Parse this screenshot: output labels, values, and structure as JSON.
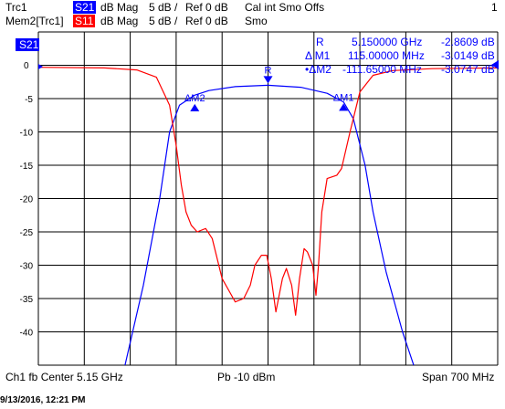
{
  "header": {
    "trace1": {
      "name": "Trc1",
      "param": "S21",
      "format": "dB Mag",
      "scale": "5 dB /",
      "ref": "Ref 0 dB",
      "cal": "Cal int Smo Offs",
      "channel_num": "1"
    },
    "trace2": {
      "name": "Mem2[Trc1]",
      "param": "S11",
      "format": "dB Mag",
      "scale": "5 dB /",
      "ref": "Ref 0 dB",
      "smo": "Smo"
    }
  },
  "plot": {
    "s21_label": "S21",
    "ref_value": "0",
    "y_labels": [
      "-5",
      "-10",
      "-15",
      "-20",
      "-25",
      "-30",
      "-35",
      "-40"
    ],
    "markers": {
      "r": "R",
      "m1": "ΔM1",
      "m2": "ΔM2"
    }
  },
  "marker_table": {
    "rows": [
      {
        "label": "R",
        "x": "5.150000 GHz",
        "y": "-2.8609 dB"
      },
      {
        "label": "Δ M1",
        "x": "115.00000 MHz",
        "y": "-3.0149 dB"
      },
      {
        "label": "•ΔM2",
        "x": "-111.65000 MHz",
        "y": "-3.0747 dB"
      }
    ]
  },
  "footer": {
    "left": "Ch1 fb  Center  5.15 GHz",
    "center": "Pb  -10 dBm",
    "right": "Span  700 MHz"
  },
  "timestamp": "9/13/2016, 12:21 PM",
  "colors": {
    "s21": "#0000ff",
    "s11": "#ff0000",
    "grid": "#000000"
  },
  "chart_data": {
    "type": "line",
    "xlabel": "",
    "ylabel": "",
    "xlim": [
      4.8,
      5.5
    ],
    "ylim": [
      -45,
      5
    ],
    "series": [
      {
        "name": "S21",
        "x": [
          4.932,
          4.96,
          4.985,
          5.0,
          5.015,
          5.038,
          5.06,
          5.1,
          5.15,
          5.2,
          5.24,
          5.265,
          5.28,
          5.298,
          5.31,
          5.33,
          5.355,
          5.372
        ],
        "y": [
          -45,
          -33,
          -20,
          -10,
          -6,
          -4.5,
          -3.8,
          -3.2,
          -3.0,
          -3.3,
          -4.2,
          -5.5,
          -8,
          -15,
          -22,
          -31,
          -40,
          -45
        ]
      },
      {
        "name": "S11",
        "x": [
          4.8,
          4.9,
          4.95,
          4.98,
          5.0,
          5.01,
          5.018,
          5.025,
          5.033,
          5.042,
          5.055,
          5.065,
          5.08,
          5.1,
          5.113,
          5.123,
          5.13,
          5.14,
          5.148,
          5.155,
          5.162,
          5.172,
          5.178,
          5.186,
          5.192,
          5.198,
          5.205,
          5.21,
          5.218,
          5.223,
          5.227,
          5.232,
          5.24,
          5.255,
          5.262,
          5.275,
          5.29,
          5.31,
          5.34,
          5.4,
          5.5
        ],
        "y": [
          -0.3,
          -0.4,
          -0.7,
          -1.8,
          -6,
          -12,
          -18,
          -22,
          -24,
          -25,
          -24.5,
          -26,
          -32,
          -35.5,
          -35,
          -33,
          -30,
          -28.5,
          -28.5,
          -32,
          -37,
          -32,
          -30.5,
          -33,
          -37.5,
          -32,
          -27.5,
          -28,
          -30,
          -34.5,
          -30,
          -22,
          -17,
          -16.5,
          -15.5,
          -10,
          -4,
          -1.5,
          -0.8,
          -0.5,
          -0.4
        ]
      }
    ],
    "markers": [
      {
        "label": "R",
        "x": 5.15,
        "y": -2.8609
      },
      {
        "label": "M1",
        "x": 5.265,
        "y": -5.8758
      },
      {
        "label": "M2",
        "x": 5.03835,
        "y": -5.9356
      }
    ]
  }
}
